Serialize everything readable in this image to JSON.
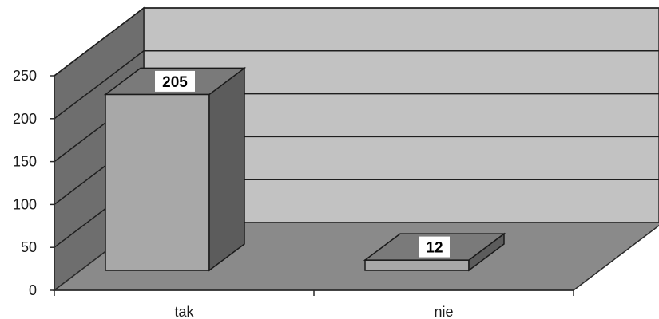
{
  "chart_data": {
    "type": "bar",
    "title": "",
    "xlabel": "",
    "ylabel": "",
    "categories": [
      "tak",
      "nie"
    ],
    "values": [
      205,
      12
    ],
    "ylim": [
      0,
      250
    ],
    "yticks": [
      0,
      50,
      100,
      150,
      200,
      250
    ],
    "grid": true,
    "style": "3d",
    "colors": {
      "bar_front": "#a8a8a8",
      "bar_side": "#5c5c5c",
      "bar_top": "#7a7a7a",
      "back_wall": "#c2c2c2",
      "side_wall": "#6e6e6e",
      "floor": "#8a8a8a",
      "label_box": "#ffffff"
    }
  }
}
